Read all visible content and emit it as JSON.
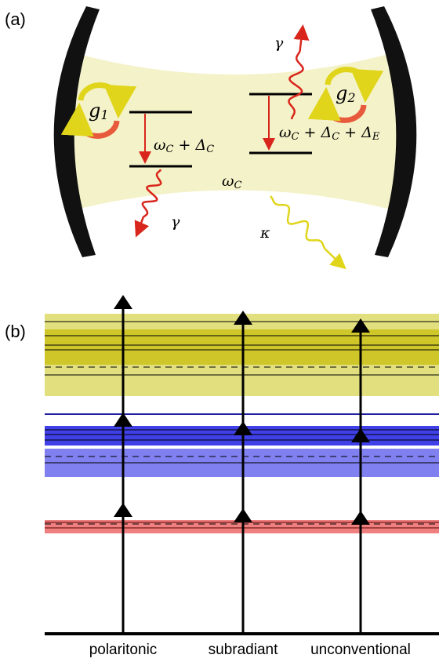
{
  "panel_a": {
    "label": "(a)",
    "coupling_1": {
      "text": "g",
      "sub": "1"
    },
    "coupling_2": {
      "text": "g",
      "sub": "2"
    },
    "transition_1": [
      {
        "text": "ω",
        "sub": "C"
      },
      {
        "text": " + Δ",
        "sub": "C"
      }
    ],
    "transition_2": [
      {
        "text": "ω",
        "sub": "C"
      },
      {
        "text": " + Δ",
        "sub": "C"
      },
      {
        "text": " + Δ",
        "sub": "E"
      }
    ],
    "cavity_frequency": [
      {
        "text": "ω",
        "sub": "C"
      }
    ],
    "gamma_1": "γ",
    "gamma_2": "γ",
    "kappa": "κ"
  },
  "panel_b": {
    "label": "(b)",
    "columns": [
      "polaritonic",
      "subradiant",
      "unconventional"
    ]
  }
}
